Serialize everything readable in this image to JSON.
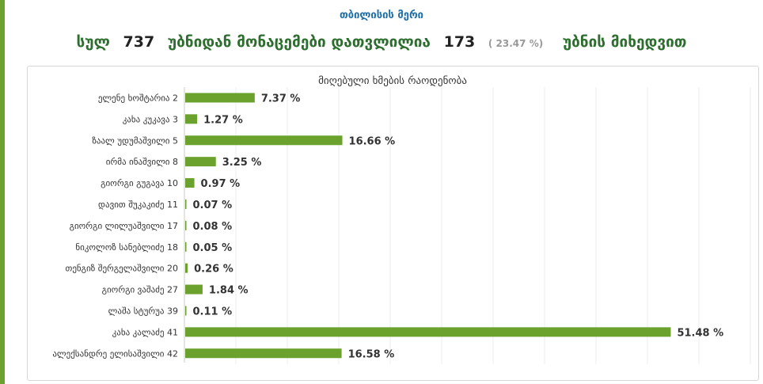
{
  "header": {
    "title": "თბილისის მერი",
    "total_label": "სულ",
    "total_precincts": "737",
    "counted_label": "უბნიდან მონაცემები დათვლილია",
    "counted_precincts": "173",
    "counted_percent": "( 23.47 %)",
    "suffix_label": "უბნის მიხედვით"
  },
  "colors": {
    "accent_green": "#6aa22d",
    "dark_green": "#2d6e2f",
    "title_blue": "#1f6fa8",
    "bar_green": "#6aa22d"
  },
  "chart_data": {
    "type": "bar",
    "orientation": "horizontal",
    "title": "მიღებული ხმების რაოდენობა",
    "xlim": [
      0,
      60
    ],
    "grid": true,
    "categories": [
      "ელენე ხოშტარია 2",
      "კახა კუკავა 3",
      "ზაალ უდუმაშვილი 5",
      "ირმა ინაშვილი 8",
      "გიორგი გუგავა 10",
      "დავით შუკაკიძე 11",
      "გიორგი ლილუაშვილი 17",
      "ნიკოლოზ სანებლიძე 18",
      "თენგიზ შერგელაშვილი 20",
      "გიორგი ვაშაძე 27",
      "ლაშა სტურუა 39",
      "კახა კალაძე 41",
      "ალექსანდრე ელისაშვილი 42"
    ],
    "values": [
      7.37,
      1.27,
      16.66,
      3.25,
      0.97,
      0.07,
      0.08,
      0.05,
      0.26,
      1.84,
      0.11,
      51.48,
      16.58
    ],
    "labels": [
      "7.37 %",
      "1.27 %",
      "16.66 %",
      "3.25 %",
      "0.97 %",
      "0.07 %",
      "0.08 %",
      "0.05 %",
      "0.26 %",
      "1.84 %",
      "0.11 %",
      "51.48 %",
      "16.58 %"
    ]
  }
}
